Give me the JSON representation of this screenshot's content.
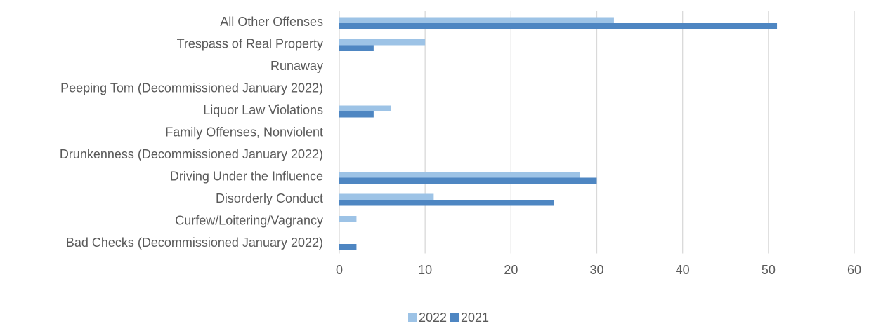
{
  "chart_data": {
    "type": "bar",
    "orientation": "horizontal",
    "categories": [
      "All Other Offenses",
      "Trespass of Real Property",
      "Runaway",
      "Peeping Tom (Decommissioned January 2022)",
      "Liquor Law Violations",
      "Family Offenses, Nonviolent",
      "Drunkenness (Decommissioned January 2022)",
      "Driving Under the Influence",
      "Disorderly Conduct",
      "Curfew/Loitering/Vagrancy",
      "Bad Checks (Decommissioned January 2022)"
    ],
    "series": [
      {
        "name": "2022",
        "color": "#9dc3e6",
        "values": [
          32,
          10,
          0,
          0,
          6,
          0,
          0,
          28,
          11,
          2,
          0
        ]
      },
      {
        "name": "2021",
        "color": "#4e86c2",
        "values": [
          51,
          4,
          0,
          0,
          4,
          0,
          0,
          30,
          25,
          0,
          2
        ]
      }
    ],
    "xticks": [
      "0",
      "10",
      "20",
      "30",
      "40",
      "50",
      "60"
    ],
    "xlim": [
      0,
      60
    ],
    "grid": true,
    "legend_position": "bottom",
    "title": "",
    "xlabel": "",
    "ylabel": ""
  }
}
